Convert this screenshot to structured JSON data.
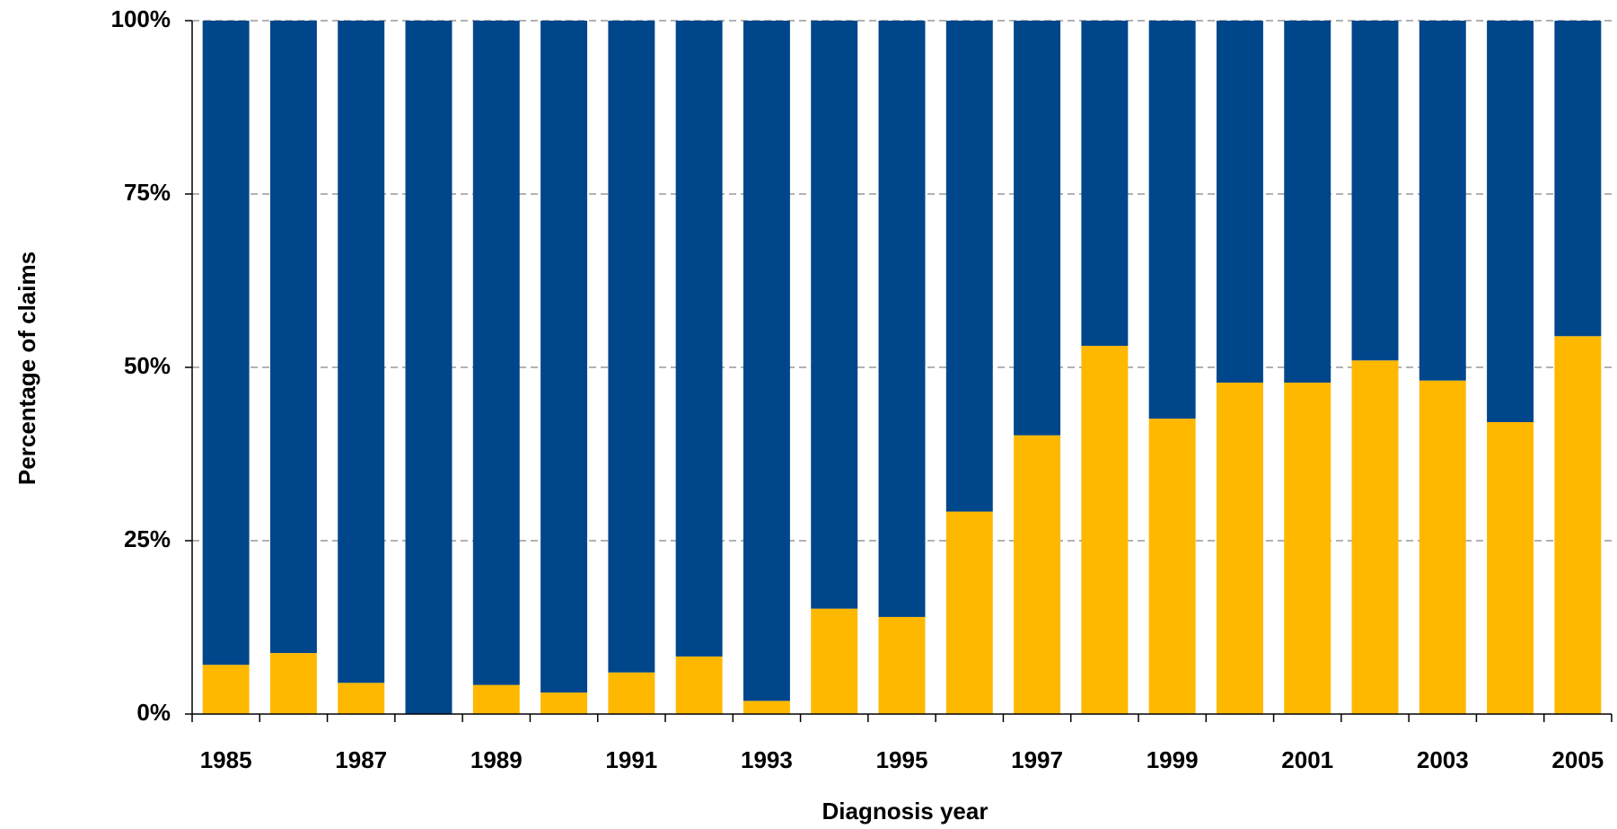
{
  "chart_data": {
    "type": "stacked_bar",
    "x_label": "Diagnosis year",
    "y_label": "Percentage of claims",
    "categories": [
      "1985",
      null,
      "1987",
      null,
      "1989",
      null,
      "1991",
      null,
      "1993",
      null,
      "1995",
      null,
      "1997",
      null,
      "1999",
      null,
      "2001",
      null,
      "2003",
      null,
      "2005"
    ],
    "series": [
      {
        "color": "#FFB800",
        "values": [
          7.1,
          8.8,
          4.5,
          0,
          4.2,
          3.1,
          6.0,
          8.3,
          1.9,
          15.2,
          14.0,
          29.2,
          40.2,
          53.1,
          42.6,
          47.8,
          47.8,
          51.0,
          48.1,
          42.1,
          54.5
        ]
      },
      {
        "color": "#00468B",
        "values": [
          92.9,
          91.2,
          95.5,
          100,
          95.8,
          96.9,
          94.0,
          91.7,
          98.1,
          84.8,
          86.0,
          70.8,
          59.8,
          46.9,
          57.4,
          52.2,
          52.2,
          49.0,
          51.9,
          57.9,
          45.5
        ]
      }
    ],
    "ylim": [
      0,
      100
    ],
    "yticks": [
      {
        "value": 0,
        "label": "0%"
      },
      {
        "value": 25,
        "label": "25%"
      },
      {
        "value": 50,
        "label": "50%"
      },
      {
        "value": 75,
        "label": "75%"
      },
      {
        "value": 100,
        "label": "100%"
      }
    ],
    "grid": true
  }
}
